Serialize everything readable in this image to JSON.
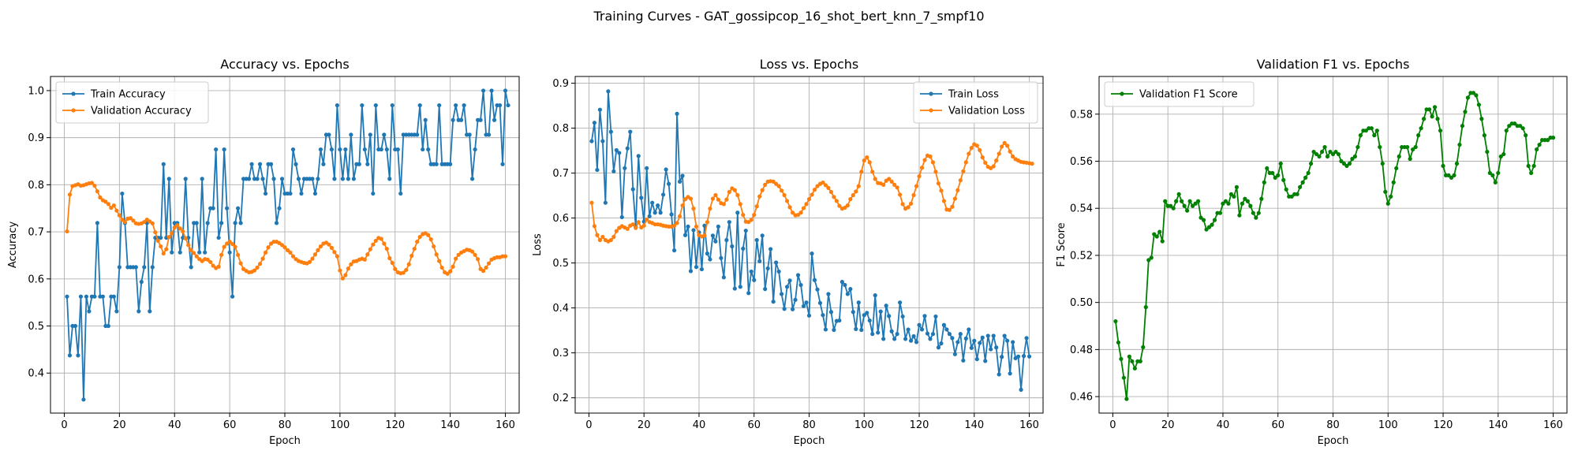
{
  "suptitle": "Training Curves - GAT_gossipcop_16_shot_bert_knn_7_smpf10",
  "colors": {
    "blue": "#1f77b4",
    "orange": "#ff7f0e",
    "green": "#008000",
    "grid": "#b0b0b0"
  },
  "chart_data": [
    {
      "type": "line",
      "title": "Accuracy vs. Epochs",
      "xlabel": "Epoch",
      "ylabel": "Accuracy",
      "xlim": [
        -5,
        165
      ],
      "ylim": [
        0.315,
        1.03
      ],
      "xticks": [
        0,
        20,
        40,
        60,
        80,
        100,
        120,
        140,
        160
      ],
      "yticks": [
        0.4,
        0.5,
        0.6,
        0.7,
        0.8,
        0.9,
        1.0
      ],
      "grid": true,
      "legend": "upper left",
      "series": [
        {
          "name": "Train Accuracy",
          "color": "#1f77b4",
          "x_start": 1,
          "values": [
            0.5625,
            0.4375,
            0.5,
            0.5,
            0.4375,
            0.5625,
            0.34375,
            0.5625,
            0.53125,
            0.5625,
            0.5625,
            0.71875,
            0.5625,
            0.5625,
            0.5,
            0.5,
            0.5625,
            0.5625,
            0.53125,
            0.625,
            0.78125,
            0.71875,
            0.625,
            0.625,
            0.625,
            0.625,
            0.53125,
            0.59375,
            0.625,
            0.71875,
            0.53125,
            0.625,
            0.6875,
            0.6875,
            0.6875,
            0.84375,
            0.6875,
            0.8125,
            0.65625,
            0.71875,
            0.71875,
            0.65625,
            0.6875,
            0.8125,
            0.6875,
            0.625,
            0.71875,
            0.71875,
            0.65625,
            0.8125,
            0.65625,
            0.71875,
            0.75,
            0.75,
            0.875,
            0.6875,
            0.71875,
            0.875,
            0.75,
            0.65625,
            0.5625,
            0.71875,
            0.75,
            0.71875,
            0.8125,
            0.8125,
            0.8125,
            0.84375,
            0.8125,
            0.8125,
            0.84375,
            0.8125,
            0.78125,
            0.84375,
            0.84375,
            0.8125,
            0.71875,
            0.75,
            0.8125,
            0.78125,
            0.78125,
            0.78125,
            0.875,
            0.84375,
            0.8125,
            0.78125,
            0.8125,
            0.8125,
            0.8125,
            0.8125,
            0.78125,
            0.8125,
            0.875,
            0.84375,
            0.90625,
            0.90625,
            0.875,
            0.8125,
            0.96875,
            0.875,
            0.8125,
            0.875,
            0.8125,
            0.90625,
            0.8125,
            0.84375,
            0.84375,
            0.96875,
            0.875,
            0.84375,
            0.90625,
            0.78125,
            0.96875,
            0.875,
            0.875,
            0.90625,
            0.875,
            0.8125,
            0.96875,
            0.875,
            0.875,
            0.78125,
            0.90625,
            0.90625,
            0.90625,
            0.90625,
            0.90625,
            0.90625,
            0.96875,
            0.875,
            0.9375,
            0.875,
            0.84375,
            0.84375,
            0.84375,
            0.96875,
            0.84375,
            0.84375,
            0.84375,
            0.84375,
            0.9375,
            0.96875,
            0.9375,
            0.9375,
            0.96875,
            0.90625,
            0.90625,
            0.8125,
            0.875,
            0.9375,
            0.9375,
            1.0,
            0.90625,
            0.90625,
            1.0,
            0.9375,
            0.96875,
            0.96875,
            0.84375,
            1.0,
            0.96875
          ]
        },
        {
          "name": "Validation Accuracy",
          "color": "#ff7f0e",
          "x_start": 1,
          "values": [
            0.701,
            0.779,
            0.797,
            0.799,
            0.801,
            0.798,
            0.799,
            0.801,
            0.803,
            0.804,
            0.798,
            0.786,
            0.773,
            0.767,
            0.764,
            0.759,
            0.751,
            0.756,
            0.745,
            0.735,
            0.726,
            0.721,
            0.728,
            0.729,
            0.724,
            0.718,
            0.717,
            0.718,
            0.721,
            0.726,
            0.722,
            0.718,
            0.699,
            0.681,
            0.669,
            0.654,
            0.663,
            0.689,
            0.697,
            0.709,
            0.714,
            0.707,
            0.701,
            0.686,
            0.672,
            0.661,
            0.655,
            0.648,
            0.642,
            0.638,
            0.642,
            0.641,
            0.636,
            0.628,
            0.623,
            0.626,
            0.651,
            0.668,
            0.675,
            0.679,
            0.674,
            0.668,
            0.651,
            0.633,
            0.621,
            0.617,
            0.614,
            0.615,
            0.618,
            0.624,
            0.632,
            0.643,
            0.656,
            0.667,
            0.675,
            0.679,
            0.679,
            0.676,
            0.672,
            0.667,
            0.661,
            0.656,
            0.648,
            0.642,
            0.638,
            0.636,
            0.634,
            0.633,
            0.636,
            0.643,
            0.652,
            0.661,
            0.669,
            0.675,
            0.677,
            0.673,
            0.666,
            0.657,
            0.648,
            0.618,
            0.601,
            0.608,
            0.622,
            0.631,
            0.637,
            0.638,
            0.641,
            0.643,
            0.641,
            0.652,
            0.663,
            0.673,
            0.681,
            0.687,
            0.685,
            0.675,
            0.664,
            0.644,
            0.634,
            0.621,
            0.614,
            0.612,
            0.613,
            0.619,
            0.631,
            0.649,
            0.664,
            0.679,
            0.689,
            0.695,
            0.697,
            0.693,
            0.684,
            0.669,
            0.652,
            0.638,
            0.624,
            0.614,
            0.611,
            0.616,
            0.626,
            0.643,
            0.651,
            0.656,
            0.659,
            0.662,
            0.661,
            0.658,
            0.651,
            0.642,
            0.621,
            0.617,
            0.624,
            0.633,
            0.641,
            0.644,
            0.646,
            0.646,
            0.648,
            0.648
          ]
        }
      ]
    },
    {
      "type": "line",
      "title": "Loss vs. Epochs",
      "xlabel": "Epoch",
      "ylabel": "Loss",
      "xlim": [
        -5,
        165
      ],
      "ylim": [
        0.166,
        0.915
      ],
      "xticks": [
        0,
        20,
        40,
        60,
        80,
        100,
        120,
        140,
        160
      ],
      "yticks": [
        0.2,
        0.3,
        0.4,
        0.5,
        0.6,
        0.7,
        0.8,
        0.9
      ],
      "grid": true,
      "legend": "upper right",
      "series": [
        {
          "name": "Train Loss",
          "color": "#1f77b4",
          "x_start": 1,
          "values": [
            0.771,
            0.812,
            0.707,
            0.841,
            0.771,
            0.634,
            0.882,
            0.792,
            0.704,
            0.751,
            0.745,
            0.602,
            0.711,
            0.755,
            0.792,
            0.664,
            0.581,
            0.738,
            0.645,
            0.592,
            0.711,
            0.604,
            0.634,
            0.612,
            0.628,
            0.612,
            0.652,
            0.708,
            0.676,
            0.608,
            0.528,
            0.832,
            0.681,
            0.694,
            0.562,
            0.581,
            0.482,
            0.573,
            0.491,
            0.568,
            0.486,
            0.583,
            0.521,
            0.508,
            0.561,
            0.548,
            0.581,
            0.511,
            0.468,
            0.551,
            0.591,
            0.537,
            0.443,
            0.612,
            0.447,
            0.532,
            0.572,
            0.433,
            0.481,
            0.462,
            0.551,
            0.504,
            0.561,
            0.442,
            0.488,
            0.531,
            0.414,
            0.501,
            0.481,
            0.431,
            0.398,
            0.447,
            0.461,
            0.397,
            0.418,
            0.473,
            0.451,
            0.404,
            0.412,
            0.383,
            0.521,
            0.462,
            0.441,
            0.411,
            0.384,
            0.352,
            0.431,
            0.391,
            0.351,
            0.371,
            0.372,
            0.458,
            0.451,
            0.431,
            0.442,
            0.391,
            0.353,
            0.412,
            0.351,
            0.384,
            0.389,
            0.372,
            0.342,
            0.428,
            0.345,
            0.392,
            0.331,
            0.405,
            0.382,
            0.348,
            0.331,
            0.342,
            0.412,
            0.381,
            0.331,
            0.352,
            0.327,
            0.337,
            0.324,
            0.362,
            0.352,
            0.382,
            0.343,
            0.331,
            0.342,
            0.381,
            0.312,
            0.321,
            0.362,
            0.352,
            0.342,
            0.333,
            0.297,
            0.324,
            0.342,
            0.283,
            0.332,
            0.352,
            0.311,
            0.327,
            0.286,
            0.322,
            0.334,
            0.282,
            0.338,
            0.308,
            0.338,
            0.312,
            0.252,
            0.291,
            0.338,
            0.327,
            0.254,
            0.324,
            0.288,
            0.292,
            0.218,
            0.293,
            0.333,
            0.292
          ]
        },
        {
          "name": "Validation Loss",
          "color": "#ff7f0e",
          "x_start": 1,
          "values": [
            0.634,
            0.582,
            0.562,
            0.551,
            0.558,
            0.551,
            0.548,
            0.551,
            0.558,
            0.571,
            0.578,
            0.582,
            0.579,
            0.576,
            0.583,
            0.586,
            0.578,
            0.591,
            0.579,
            0.583,
            0.597,
            0.591,
            0.589,
            0.586,
            0.586,
            0.585,
            0.583,
            0.582,
            0.581,
            0.581,
            0.583,
            0.589,
            0.604,
            0.628,
            0.642,
            0.647,
            0.643,
            0.621,
            0.581,
            0.562,
            0.559,
            0.561,
            0.591,
            0.621,
            0.643,
            0.651,
            0.641,
            0.633,
            0.631,
            0.641,
            0.658,
            0.666,
            0.662,
            0.651,
            0.631,
            0.607,
            0.592,
            0.591,
            0.596,
            0.607,
            0.626,
            0.648,
            0.662,
            0.674,
            0.681,
            0.682,
            0.681,
            0.676,
            0.671,
            0.661,
            0.651,
            0.638,
            0.624,
            0.612,
            0.606,
            0.607,
            0.612,
            0.622,
            0.631,
            0.642,
            0.652,
            0.663,
            0.671,
            0.676,
            0.679,
            0.673,
            0.667,
            0.658,
            0.647,
            0.638,
            0.627,
            0.621,
            0.623,
            0.628,
            0.642,
            0.651,
            0.659,
            0.671,
            0.703,
            0.728,
            0.735,
            0.724,
            0.703,
            0.687,
            0.678,
            0.677,
            0.674,
            0.683,
            0.687,
            0.681,
            0.674,
            0.668,
            0.652,
            0.631,
            0.621,
            0.624,
            0.632,
            0.651,
            0.671,
            0.693,
            0.712,
            0.729,
            0.739,
            0.737,
            0.724,
            0.703,
            0.677,
            0.661,
            0.638,
            0.619,
            0.618,
            0.625,
            0.643,
            0.662,
            0.684,
            0.704,
            0.724,
            0.743,
            0.756,
            0.764,
            0.761,
            0.751,
            0.735,
            0.723,
            0.714,
            0.711,
            0.715,
            0.728,
            0.743,
            0.759,
            0.767,
            0.761,
            0.748,
            0.737,
            0.731,
            0.728,
            0.725,
            0.724,
            0.723,
            0.722,
            0.721
          ]
        }
      ]
    },
    {
      "type": "line",
      "title": "Validation F1 vs. Epochs",
      "xlabel": "Epoch",
      "ylabel": "F1 Score",
      "xlim": [
        -5,
        165
      ],
      "ylim": [
        0.453,
        0.596
      ],
      "xticks": [
        0,
        20,
        40,
        60,
        80,
        100,
        120,
        140,
        160
      ],
      "yticks": [
        0.46,
        0.48,
        0.5,
        0.52,
        0.54,
        0.56,
        0.58
      ],
      "grid": true,
      "legend": "upper left",
      "series": [
        {
          "name": "Validation F1 Score",
          "color": "#008000",
          "x_start": 1,
          "values": [
            0.492,
            0.483,
            0.476,
            0.468,
            0.459,
            0.477,
            0.475,
            0.472,
            0.475,
            0.475,
            0.481,
            0.498,
            0.518,
            0.519,
            0.529,
            0.528,
            0.53,
            0.526,
            0.543,
            0.541,
            0.541,
            0.54,
            0.543,
            0.546,
            0.543,
            0.541,
            0.539,
            0.543,
            0.541,
            0.542,
            0.543,
            0.536,
            0.535,
            0.531,
            0.532,
            0.533,
            0.535,
            0.538,
            0.538,
            0.542,
            0.543,
            0.542,
            0.546,
            0.545,
            0.549,
            0.537,
            0.542,
            0.544,
            0.543,
            0.541,
            0.538,
            0.536,
            0.538,
            0.544,
            0.551,
            0.557,
            0.555,
            0.555,
            0.553,
            0.554,
            0.559,
            0.552,
            0.548,
            0.545,
            0.545,
            0.546,
            0.546,
            0.549,
            0.551,
            0.553,
            0.555,
            0.559,
            0.564,
            0.563,
            0.562,
            0.564,
            0.566,
            0.562,
            0.564,
            0.563,
            0.564,
            0.563,
            0.56,
            0.559,
            0.558,
            0.559,
            0.561,
            0.562,
            0.566,
            0.571,
            0.573,
            0.573,
            0.574,
            0.574,
            0.571,
            0.573,
            0.566,
            0.559,
            0.547,
            0.542,
            0.545,
            0.551,
            0.557,
            0.562,
            0.566,
            0.566,
            0.566,
            0.561,
            0.565,
            0.566,
            0.571,
            0.574,
            0.578,
            0.582,
            0.582,
            0.579,
            0.583,
            0.578,
            0.573,
            0.558,
            0.554,
            0.554,
            0.553,
            0.554,
            0.559,
            0.567,
            0.575,
            0.581,
            0.587,
            0.589,
            0.589,
            0.588,
            0.584,
            0.578,
            0.571,
            0.564,
            0.555,
            0.554,
            0.551,
            0.555,
            0.562,
            0.563,
            0.573,
            0.575,
            0.576,
            0.576,
            0.575,
            0.575,
            0.574,
            0.571,
            0.558,
            0.555,
            0.558,
            0.565,
            0.567,
            0.569,
            0.569,
            0.569,
            0.57,
            0.57
          ]
        }
      ]
    }
  ]
}
